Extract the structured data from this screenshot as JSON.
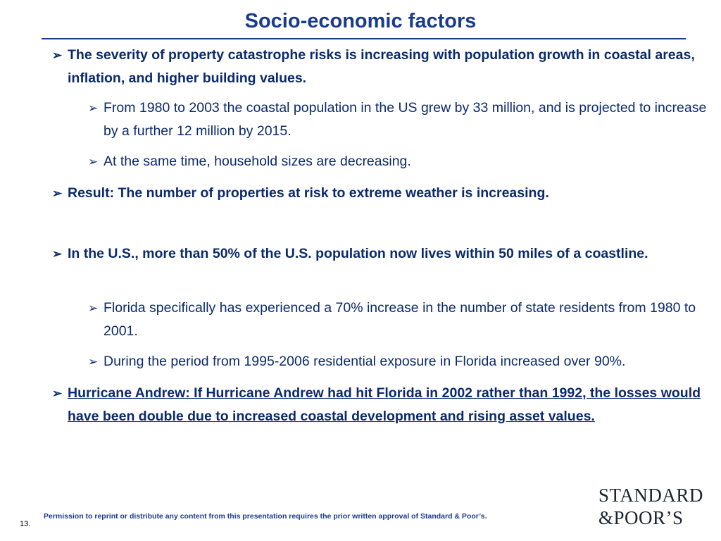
{
  "slide": {
    "title": "Socio-economic factors",
    "bullets": [
      {
        "arrow": "➢",
        "text": "The severity of property catastrophe risks is increasing with population growth in coastal areas, inflation, and higher building values."
      },
      {
        "arrow": "➢",
        "text": "From 1980 to 2003 the coastal population in the US grew by 33 million, and is projected to increase by a further 12 million by 2015."
      },
      {
        "arrow": "➢",
        "text": "At the same time, household sizes are decreasing."
      },
      {
        "arrow": "➢",
        "text": "Result: The number of properties at risk to extreme weather is increasing."
      },
      {
        "arrow": "➢",
        "text": "In the U.S., more than 50% of the U.S. population now lives within 50 miles of a coastline."
      },
      {
        "arrow": "➢",
        "text": "Florida specifically has experienced a 70% increase in the number of state residents from 1980 to 2001."
      },
      {
        "arrow": "➢",
        "text": "During the period from 1995-2006 residential exposure in Florida increased over 90%."
      },
      {
        "arrow": "➢",
        "text": "Hurricane Andrew: If Hurricane Andrew had hit Florida in 2002 rather than 1992, the losses would have been double due to increased coastal development and rising asset values."
      }
    ]
  },
  "footer": {
    "permission": "Permission to reprint or distribute any content from this presentation requires the prior written approval of Standard & Poor’s.",
    "page_number": "13."
  },
  "logo": {
    "line1": "STANDARD",
    "line2": "&POOR’S"
  }
}
